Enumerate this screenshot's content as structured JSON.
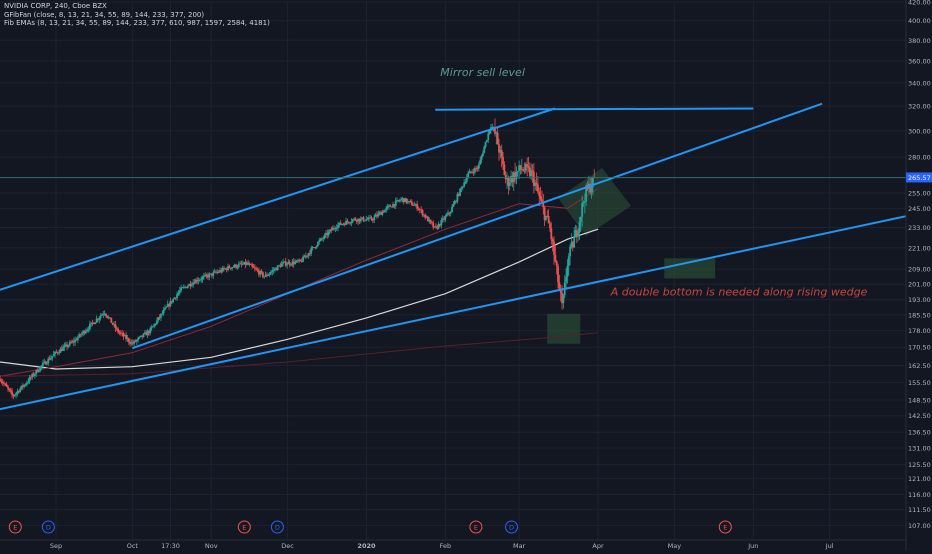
{
  "header": {
    "symbol": "NVIDIA CORP, 240, Cboe BZX",
    "indicator1": "GFibFan (close, 8, 13, 21, 34, 55, 89, 144, 233, 377, 200)",
    "indicator2": "Fib EMAs (8, 13, 21, 34, 55, 89, 144, 233, 377, 610, 987, 1597, 2584, 4181)"
  },
  "colors": {
    "background": "#131722",
    "grid": "#1e2230",
    "text": "#b2b5be",
    "trendline": "#2196f3",
    "up": "#26a69a",
    "down": "#ef5350",
    "ema_white": "#d8d8d8",
    "ema_red": "#8e2a3a",
    "ema_dark": "#5a1f2a",
    "box": "#2e5a3a",
    "annotation_teal": "#5b9a8b",
    "annotation_red": "#c8463f",
    "current_price": "#2962ff",
    "event_earnings": "#ef5350",
    "event_dividend": "#2962ff"
  },
  "chart_data": {
    "type": "candlestick",
    "y_scale": "log",
    "ylim": [
      103,
      420
    ],
    "xlim": [
      "2019-08-10",
      "2020-07-31"
    ],
    "y_ticks": [
      "420.00",
      "400.00",
      "380.00",
      "360.00",
      "340.00",
      "320.00",
      "300.00",
      "280.00",
      "265.00",
      "255.00",
      "245.00",
      "233.00",
      "221.00",
      "209.00",
      "201.00",
      "193.00",
      "185.50",
      "178.00",
      "170.50",
      "162.50",
      "155.50",
      "148.50",
      "142.50",
      "136.50",
      "131.00",
      "125.50",
      "121.00",
      "116.00",
      "111.50",
      "107.00"
    ],
    "x_ticks": [
      {
        "label": "Sep",
        "date": "2019-09-01"
      },
      {
        "label": "Oct",
        "date": "2019-10-01"
      },
      {
        "label": "17:30",
        "date": "2019-10-16"
      },
      {
        "label": "Nov",
        "date": "2019-11-01"
      },
      {
        "label": "Dec",
        "date": "2019-12-01"
      },
      {
        "label": "2020",
        "date": "2020-01-01"
      },
      {
        "label": "Feb",
        "date": "2020-02-01"
      },
      {
        "label": "Mar",
        "date": "2020-03-01"
      },
      {
        "label": "Apr",
        "date": "2020-04-01"
      },
      {
        "label": "May",
        "date": "2020-05-01"
      },
      {
        "label": "Jun",
        "date": "2020-06-01"
      },
      {
        "label": "Jul",
        "date": "2020-07-01"
      }
    ],
    "current_price": "265.57",
    "price_series": [
      [
        "2019-08-10",
        157
      ],
      [
        "2019-08-15",
        150
      ],
      [
        "2019-08-20",
        155
      ],
      [
        "2019-08-26",
        162
      ],
      [
        "2019-09-01",
        168
      ],
      [
        "2019-09-08",
        173
      ],
      [
        "2019-09-15",
        181
      ],
      [
        "2019-09-20",
        187
      ],
      [
        "2019-09-25",
        178
      ],
      [
        "2019-10-01",
        172
      ],
      [
        "2019-10-08",
        178
      ],
      [
        "2019-10-15",
        190
      ],
      [
        "2019-10-20",
        198
      ],
      [
        "2019-10-26",
        203
      ],
      [
        "2019-11-01",
        206
      ],
      [
        "2019-11-08",
        210
      ],
      [
        "2019-11-15",
        212
      ],
      [
        "2019-11-22",
        205
      ],
      [
        "2019-11-29",
        212
      ],
      [
        "2019-12-06",
        213
      ],
      [
        "2019-12-13",
        224
      ],
      [
        "2019-12-20",
        234
      ],
      [
        "2019-12-27",
        238
      ],
      [
        "2020-01-03",
        238
      ],
      [
        "2020-01-10",
        246
      ],
      [
        "2020-01-15",
        251
      ],
      [
        "2020-01-21",
        246
      ],
      [
        "2020-01-28",
        232
      ],
      [
        "2020-02-03",
        243
      ],
      [
        "2020-02-10",
        268
      ],
      [
        "2020-02-14",
        273
      ],
      [
        "2020-02-19",
        305
      ],
      [
        "2020-02-21",
        295
      ],
      [
        "2020-02-25",
        262
      ],
      [
        "2020-03-02",
        272
      ],
      [
        "2020-03-06",
        268
      ],
      [
        "2020-03-10",
        246
      ],
      [
        "2020-03-13",
        233
      ],
      [
        "2020-03-16",
        205
      ],
      [
        "2020-03-18",
        188
      ],
      [
        "2020-03-20",
        213
      ],
      [
        "2020-03-24",
        233
      ],
      [
        "2020-03-27",
        255
      ],
      [
        "2020-03-31",
        265
      ]
    ],
    "ema_series": [
      {
        "name": "",
        "color": "#d8d8d8",
        "points": [
          [
            "2019-08-10",
            164
          ],
          [
            "2019-09-01",
            161
          ],
          [
            "2019-10-01",
            162
          ],
          [
            "2019-11-01",
            166
          ],
          [
            "2019-12-01",
            174
          ],
          [
            "2020-01-01",
            184
          ],
          [
            "2020-02-01",
            196
          ],
          [
            "2020-03-01",
            213
          ],
          [
            "2020-03-20",
            226
          ],
          [
            "2020-04-01",
            232
          ]
        ]
      },
      {
        "name": "",
        "color": "#8e2a3a",
        "points": [
          [
            "2019-08-10",
            158
          ],
          [
            "2019-09-01",
            162
          ],
          [
            "2019-10-01",
            168
          ],
          [
            "2019-11-01",
            180
          ],
          [
            "2019-12-01",
            196
          ],
          [
            "2020-01-01",
            214
          ],
          [
            "2020-02-01",
            232
          ],
          [
            "2020-03-01",
            248
          ],
          [
            "2020-03-20",
            245
          ],
          [
            "2020-04-01",
            258
          ]
        ]
      },
      {
        "name": "",
        "color": "#5a1f2a",
        "points": [
          [
            "2019-08-10",
            158
          ],
          [
            "2019-10-01",
            159
          ],
          [
            "2019-12-01",
            164
          ],
          [
            "2020-02-01",
            171
          ],
          [
            "2020-03-15",
            175
          ],
          [
            "2020-04-01",
            177
          ]
        ]
      }
    ],
    "trendlines": [
      [
        [
          "2019-08-10",
          198
        ],
        [
          "2020-03-15",
          318
        ]
      ],
      [
        [
          "2019-10-01",
          170
        ],
        [
          "2020-06-28",
          322
        ]
      ],
      [
        [
          "2019-08-10",
          145
        ],
        [
          "2020-07-31",
          240
        ]
      ],
      [
        [
          "2020-01-28",
          317
        ],
        [
          "2020-06-01",
          318
        ]
      ]
    ],
    "boxes": [
      {
        "kind": "rotated",
        "label": ""
      },
      {
        "kind": "rect",
        "x": [
          "2020-04-27",
          "2020-05-17"
        ],
        "y": [
          204,
          215
        ]
      },
      {
        "kind": "rect",
        "x": [
          "2020-03-12",
          "2020-03-25"
        ],
        "y": [
          172,
          186
        ]
      }
    ],
    "annotations": [
      {
        "text": "Mirror sell level",
        "date": "2020-01-30",
        "price": 346,
        "color": "#5b9a8b"
      },
      {
        "text": "A double bottom is needed along rising wedge",
        "date": "2020-04-06",
        "price": 195,
        "color": "#c8463f"
      }
    ],
    "events": [
      {
        "label": "E",
        "date": "2019-08-16",
        "type": "earnings"
      },
      {
        "label": "D",
        "date": "2019-08-29",
        "type": "dividend"
      },
      {
        "label": "E",
        "date": "2019-11-14",
        "type": "earnings"
      },
      {
        "label": "D",
        "date": "2019-11-27",
        "type": "dividend"
      },
      {
        "label": "E",
        "date": "2020-02-13",
        "type": "earnings"
      },
      {
        "label": "D",
        "date": "2020-02-27",
        "type": "dividend"
      },
      {
        "label": "E",
        "date": "2020-05-21",
        "type": "earnings"
      }
    ]
  }
}
